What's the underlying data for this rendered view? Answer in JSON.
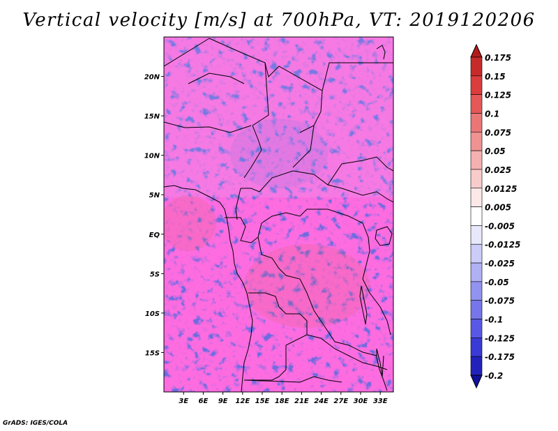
{
  "title": "Vertical velocity [m/s] at 700hPa, VT: 2019120206",
  "credit": "GrADS: IGES/COLA",
  "map": {
    "region": "Central Africa",
    "lon_range": [
      0,
      35
    ],
    "lat_range": [
      -20,
      25
    ],
    "lat_labels": [
      {
        "lat": 20,
        "label": "20N"
      },
      {
        "lat": 15,
        "label": "15N"
      },
      {
        "lat": 10,
        "label": "10N"
      },
      {
        "lat": 5,
        "label": "5N"
      },
      {
        "lat": 0,
        "label": "EQ"
      },
      {
        "lat": -5,
        "label": "5S"
      },
      {
        "lat": -10,
        "label": "10S"
      },
      {
        "lat": -15,
        "label": "15S"
      }
    ],
    "lon_labels": [
      {
        "lon": 3,
        "label": "3E"
      },
      {
        "lon": 6,
        "label": "6E"
      },
      {
        "lon": 9,
        "label": "9E"
      },
      {
        "lon": 12,
        "label": "12E"
      },
      {
        "lon": 15,
        "label": "15E"
      },
      {
        "lon": 18,
        "label": "18E"
      },
      {
        "lon": 21,
        "label": "21E"
      },
      {
        "lon": 24,
        "label": "24E"
      },
      {
        "lon": 27,
        "label": "27E"
      },
      {
        "lon": 30,
        "label": "30E"
      },
      {
        "lon": 33,
        "label": "33E"
      }
    ]
  },
  "colorbar": {
    "labels": [
      "0.175",
      "0.15",
      "0.125",
      "0.1",
      "0.075",
      "0.05",
      "0.025",
      "0.0125",
      "0.005",
      "-0.005",
      "-0.0125",
      "-0.025",
      "-0.05",
      "-0.075",
      "-0.1",
      "-0.125",
      "-0.175",
      "-0.2"
    ],
    "colors": [
      "#b31a1c",
      "#c72a2a",
      "#db3c3c",
      "#e45858",
      "#ea7676",
      "#f09292",
      "#f5b0b0",
      "#f9cccc",
      "#fde8e8",
      "#ffffff",
      "#e8e8fd",
      "#ccccf9",
      "#b0b0f5",
      "#9292f0",
      "#7676ea",
      "#5858e4",
      "#3a3ad6",
      "#2222bb",
      "#10109a"
    ]
  },
  "colors": {
    "positive_dark": "#b31a1c",
    "negative_dark": "#10109a",
    "neutral": "#ffffff"
  }
}
